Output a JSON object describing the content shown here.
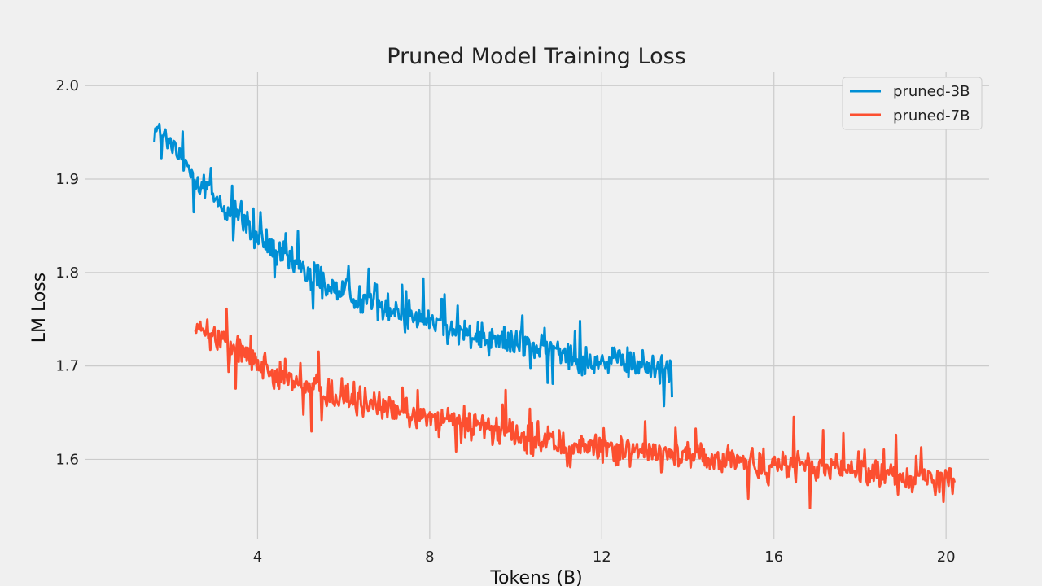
{
  "chart_data": {
    "type": "line",
    "title": "Pruned Model Training Loss",
    "xlabel": "Tokens (B)",
    "ylabel": "LM Loss",
    "xlim": [
      0,
      21
    ],
    "ylim": [
      1.515,
      2.015
    ],
    "xticks": [
      4,
      8,
      12,
      16,
      20
    ],
    "yticks": [
      1.6,
      1.7,
      1.8,
      1.9,
      2.0
    ],
    "grid": true,
    "legend_position": "top-right",
    "background": "#f0f0f0",
    "series": [
      {
        "name": "pruned-3B",
        "color": "#008fd5",
        "x": [
          1.6,
          2.0,
          2.5,
          3.0,
          3.5,
          4.0,
          4.5,
          5.0,
          5.5,
          6.0,
          6.5,
          7.0,
          7.5,
          8.0,
          8.5,
          9.0,
          9.5,
          10.0,
          10.5,
          11.0,
          11.5,
          12.0,
          12.5,
          13.0,
          13.5,
          13.65
        ],
        "y": [
          1.955,
          1.935,
          1.905,
          1.88,
          1.855,
          1.835,
          1.82,
          1.805,
          1.79,
          1.78,
          1.77,
          1.765,
          1.755,
          1.75,
          1.74,
          1.735,
          1.73,
          1.725,
          1.72,
          1.715,
          1.71,
          1.705,
          1.703,
          1.7,
          1.698,
          1.71
        ],
        "noise": 0.014,
        "spike_max": 0.035
      },
      {
        "name": "pruned-7B",
        "color": "#fc4f30",
        "x": [
          2.55,
          3.0,
          3.5,
          4.0,
          4.5,
          5.0,
          5.5,
          6.0,
          6.5,
          7.0,
          7.5,
          8.0,
          8.5,
          9.0,
          9.5,
          10.0,
          10.5,
          11.0,
          11.5,
          12.0,
          12.5,
          13.0,
          13.5,
          14.0,
          14.5,
          15.0,
          15.5,
          16.0,
          16.5,
          17.0,
          17.5,
          18.0,
          18.5,
          19.0,
          19.5,
          20.0,
          20.2
        ],
        "y": [
          1.74,
          1.73,
          1.72,
          1.705,
          1.69,
          1.68,
          1.675,
          1.665,
          1.66,
          1.655,
          1.65,
          1.645,
          1.64,
          1.635,
          1.63,
          1.625,
          1.62,
          1.617,
          1.615,
          1.612,
          1.61,
          1.607,
          1.605,
          1.603,
          1.6,
          1.598,
          1.596,
          1.594,
          1.592,
          1.59,
          1.588,
          1.586,
          1.584,
          1.582,
          1.58,
          1.578,
          1.57
        ],
        "noise": 0.013,
        "spike_max": 0.04
      }
    ]
  }
}
